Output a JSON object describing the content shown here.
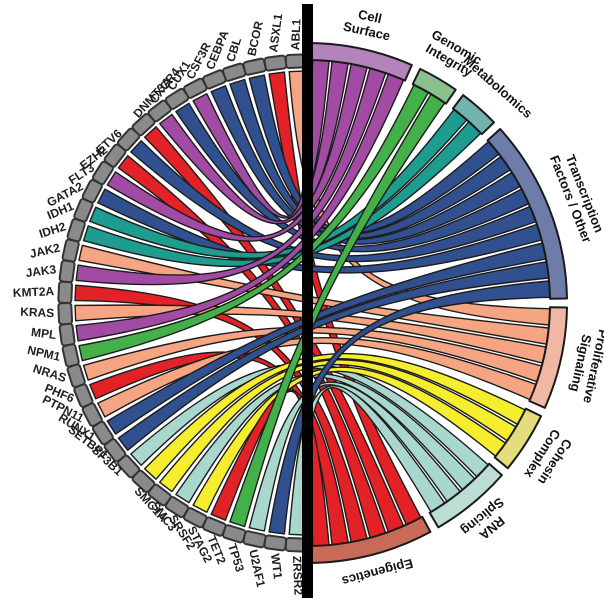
{
  "figure": {
    "kind": "gene-category chord diagram",
    "divider_color": "#000000",
    "background": "#ffffff"
  },
  "chart_data": {
    "type": "chord",
    "title": "",
    "left_side": "genes",
    "right_side": "functional categories",
    "node_color": "#8a8a8a",
    "node_border": "#333333",
    "categories": [
      {
        "name": "Cell Surface",
        "label_lines": [
          "Cell",
          "Surface"
        ],
        "ribbon_color": "#a14ba5",
        "arc_color": "#b383bb"
      },
      {
        "name": "Genomic Integrity",
        "label_lines": [
          "Genomic",
          "Integrity"
        ],
        "ribbon_color": "#44b049",
        "arc_color": "#8ac08b"
      },
      {
        "name": "Metabolomics",
        "label_lines": [
          "Metabolomics"
        ],
        "ribbon_color": "#1d9c8f",
        "arc_color": "#72b3ab"
      },
      {
        "name": "Transcription Factors / Other",
        "label_lines": [
          "Transcription",
          "Factors / Other"
        ],
        "ribbon_color": "#30508f",
        "arc_color": "#6d7ca8"
      },
      {
        "name": "Proliferative Signaling",
        "label_lines": [
          "Proliferative",
          "Signaling"
        ],
        "ribbon_color": "#f5a582",
        "arc_color": "#f0b8a2"
      },
      {
        "name": "Cohesin Complex",
        "label_lines": [
          "Cohesin",
          "Complex"
        ],
        "ribbon_color": "#f5ee2e",
        "arc_color": "#e3dd7d"
      },
      {
        "name": "RNA Splicing",
        "label_lines": [
          "RNA",
          "Splicing"
        ],
        "ribbon_color": "#a8d8cd",
        "arc_color": "#bcdcd4"
      },
      {
        "name": "Epigenetics",
        "label_lines": [
          "Epigenetics"
        ],
        "ribbon_color": "#e32227",
        "arc_color": "#c96a58"
      }
    ],
    "genes": [
      {
        "name": "ABL1",
        "category": "Proliferative Signaling"
      },
      {
        "name": "ASXL1",
        "category": "Epigenetics"
      },
      {
        "name": "BCOR",
        "category": "Transcription Factors / Other"
      },
      {
        "name": "CBL",
        "category": "Transcription Factors / Other"
      },
      {
        "name": "CEBPA",
        "category": "Transcription Factors / Other"
      },
      {
        "name": "CSF3R",
        "category": "Cell Surface"
      },
      {
        "name": "CUX1",
        "category": "Transcription Factors / Other"
      },
      {
        "name": "CXCR4",
        "category": "Cell Surface"
      },
      {
        "name": "DNMT3A",
        "category": "Epigenetics"
      },
      {
        "name": "ETV6",
        "category": "Transcription Factors / Other"
      },
      {
        "name": "EZH2",
        "category": "Epigenetics"
      },
      {
        "name": "FLT3",
        "category": "Cell Surface"
      },
      {
        "name": "GATA2",
        "category": "Transcription Factors / Other"
      },
      {
        "name": "IDH1",
        "category": "Metabolomics"
      },
      {
        "name": "IDH2",
        "category": "Metabolomics"
      },
      {
        "name": "JAK2",
        "category": "Proliferative Signaling"
      },
      {
        "name": "JAK3",
        "category": "Cell Surface"
      },
      {
        "name": "KMT2A",
        "category": "Epigenetics"
      },
      {
        "name": "KRAS",
        "category": "Proliferative Signaling"
      },
      {
        "name": "MPL",
        "category": "Cell Surface"
      },
      {
        "name": "NPM1",
        "category": "Genomic Integrity"
      },
      {
        "name": "NRAS",
        "category": "Proliferative Signaling"
      },
      {
        "name": "PHF6",
        "category": "Epigenetics"
      },
      {
        "name": "PTPN11",
        "category": "Proliferative Signaling"
      },
      {
        "name": "RUNX1",
        "category": "Transcription Factors / Other"
      },
      {
        "name": "SETBP1",
        "category": "Transcription Factors / Other"
      },
      {
        "name": "SF3B1",
        "category": "RNA Splicing"
      },
      {
        "name": "SMC1A",
        "category": "Cohesin Complex"
      },
      {
        "name": "SMC3",
        "category": "Cohesin Complex"
      },
      {
        "name": "SRSF2",
        "category": "RNA Splicing"
      },
      {
        "name": "STAG2",
        "category": "Cohesin Complex"
      },
      {
        "name": "TET2",
        "category": "Epigenetics"
      },
      {
        "name": "TP53",
        "category": "Genomic Integrity"
      },
      {
        "name": "U2AF1",
        "category": "RNA Splicing"
      },
      {
        "name": "WT1",
        "category": "Transcription Factors / Other"
      },
      {
        "name": "ZRSR2",
        "category": "RNA Splicing"
      }
    ]
  }
}
